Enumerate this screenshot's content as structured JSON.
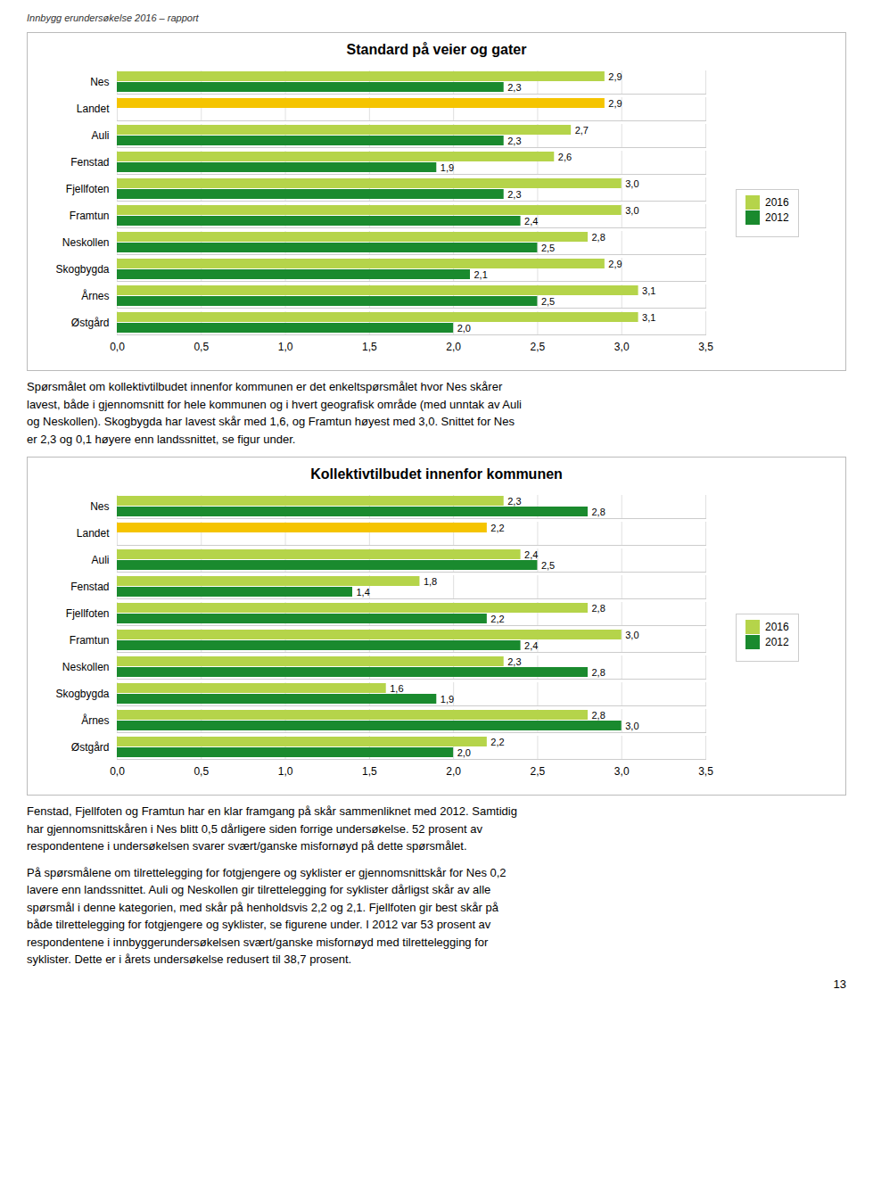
{
  "header": "Innbygg erundersøkelse 2016 – rapport",
  "chart_data": [
    {
      "type": "bar",
      "orientation": "horizontal",
      "title": "Standard på veier og gater",
      "categories": [
        "Nes",
        "Landet",
        "Auli",
        "Fenstad",
        "Fjellfoten",
        "Framtun",
        "Neskollen",
        "Skogbygda",
        "Årnes",
        "Østgård"
      ],
      "series": [
        {
          "name": "2016",
          "color": "#b5d44a",
          "colors": [
            "#b5d44a",
            "#f5c400",
            "#b5d44a",
            "#b5d44a",
            "#b5d44a",
            "#b5d44a",
            "#b5d44a",
            "#b5d44a",
            "#b5d44a",
            "#b5d44a"
          ],
          "values": [
            2.9,
            2.9,
            2.7,
            2.6,
            3.0,
            3.0,
            2.8,
            2.9,
            3.1,
            3.1
          ],
          "value_labels": [
            "2,9",
            "2,9",
            "2,7",
            "2,6",
            "3,0",
            "3,0",
            "2,8",
            "2,9",
            "3,1",
            "3,1"
          ]
        },
        {
          "name": "2012",
          "color": "#1a8a2e",
          "values": [
            2.3,
            null,
            2.3,
            1.9,
            2.3,
            2.4,
            2.5,
            2.1,
            2.5,
            2.0
          ],
          "value_labels": [
            "2,3",
            null,
            "2,3",
            "1,9",
            "2,3",
            "2,4",
            "2,5",
            "2,1",
            "2,5",
            "2,0"
          ]
        }
      ],
      "xlim": [
        0.0,
        3.5
      ],
      "xticks": [
        {
          "value": 0.0,
          "label": "0,0"
        },
        {
          "value": 0.5,
          "label": "0,5"
        },
        {
          "value": 1.0,
          "label": "1,0"
        },
        {
          "value": 1.5,
          "label": "1,5"
        },
        {
          "value": 2.0,
          "label": "2,0"
        },
        {
          "value": 2.5,
          "label": "2,5"
        },
        {
          "value": 3.0,
          "label": "3,0"
        },
        {
          "value": 3.5,
          "label": "3,5"
        }
      ],
      "grid": true,
      "legend": "right",
      "data_labels": true,
      "annotations": [
        "Spørsmålet om kollektivtilbudet innenfor kommunen er det enkeltspørsmålet hvor Nes skårer\nlavest, både i gjennomsnitt for hele kommunen og i hvert geografisk område (med unntak av Auli\nog Neskollen). Skogbygda har lavest skår med 1,6, og Framtun høyest med 3,0. Snittet for Nes\ner 2,3 og 0,1 høyere enn landssnittet, se figur under."
      ]
    },
    {
      "type": "bar",
      "orientation": "horizontal",
      "title": "Kollektivtilbudet innenfor kommunen",
      "categories": [
        "Nes",
        "Landet",
        "Auli",
        "Fenstad",
        "Fjellfoten",
        "Framtun",
        "Neskollen",
        "Skogbygda",
        "Årnes",
        "Østgård"
      ],
      "series": [
        {
          "name": "2016",
          "color": "#b5d44a",
          "colors": [
            "#b5d44a",
            "#f5c400",
            "#b5d44a",
            "#b5d44a",
            "#b5d44a",
            "#b5d44a",
            "#b5d44a",
            "#b5d44a",
            "#b5d44a",
            "#b5d44a"
          ],
          "values": [
            2.3,
            2.2,
            2.4,
            1.8,
            2.8,
            3.0,
            2.3,
            1.6,
            2.8,
            2.2
          ],
          "value_labels": [
            "2,3",
            "2,2",
            "2,4",
            "1,8",
            "2,8",
            "3,0",
            "2,3",
            "1,6",
            "2,8",
            "2,2"
          ]
        },
        {
          "name": "2012",
          "color": "#1a8a2e",
          "values": [
            2.8,
            null,
            2.5,
            1.4,
            2.2,
            2.4,
            2.8,
            1.9,
            3.0,
            2.0
          ],
          "value_labels": [
            "2,8",
            null,
            "2,5",
            "1,4",
            "2,2",
            "2,4",
            "2,8",
            "1,9",
            "3,0",
            "2,0"
          ]
        }
      ],
      "xlim": [
        0.0,
        3.5
      ],
      "xticks": [
        {
          "value": 0.0,
          "label": "0,0"
        },
        {
          "value": 0.5,
          "label": "0,5"
        },
        {
          "value": 1.0,
          "label": "1,0"
        },
        {
          "value": 1.5,
          "label": "1,5"
        },
        {
          "value": 2.0,
          "label": "2,0"
        },
        {
          "value": 2.5,
          "label": "2,5"
        },
        {
          "value": 3.0,
          "label": "3,0"
        },
        {
          "value": 3.5,
          "label": "3,5"
        }
      ],
      "grid": true,
      "legend": "right",
      "data_labels": true,
      "annotations": [
        "Fenstad, Fjellfoten og Framtun har en klar framgang på skår sammenliknet med 2012. Samtidig\nhar gjennomsnittskåren i Nes blitt 0,5 dårligere siden forrige undersøkelse. 52 prosent av\nrespondentene i undersøkelsen svarer svært/ganske misfornøyd på dette spørsmålet.",
        "På spørsmålene om tilrettelegging for fotgjengere og syklister er gjennomsnittskår for Nes 0,2\nlavere enn landssnittet. Auli og Neskollen gir tilrettelegging for syklister dårligst skår av alle\nspørsmål i denne kategorien, med skår på henholdsvis 2,2 og 2,1. Fjellfoten gir best skår på\nbåde tilrettelegging for fotgjengere og syklister, se figurene under. I 2012 var 53 prosent av\nrespondentene i innbyggerundersøkelsen svært/ganske misfornøyd med tilrettelegging for\nsyklister. Dette er i årets undersøkelse redusert til 38,7 prosent."
      ]
    }
  ],
  "page_number": "13"
}
